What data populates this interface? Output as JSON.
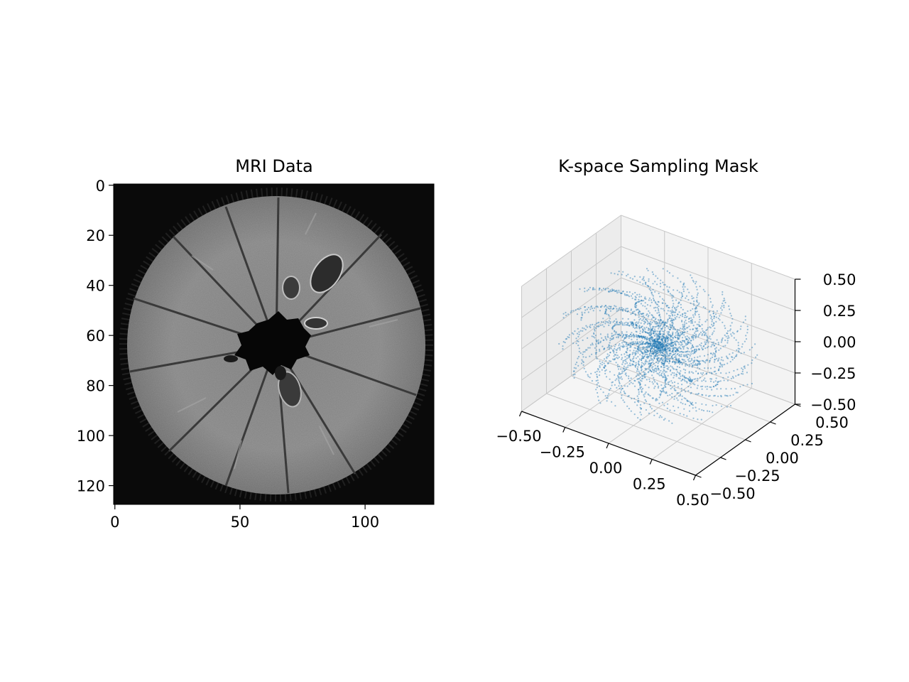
{
  "chart_data": [
    {
      "type": "heatmap",
      "title": "MRI Data",
      "x_ticks": [
        0,
        50,
        100
      ],
      "y_ticks": [
        0,
        20,
        40,
        60,
        80,
        100,
        120
      ],
      "xlim": [
        0,
        128
      ],
      "ylim": [
        128,
        0
      ],
      "colormap": "gray",
      "image_description": "Grayscale cross-section of a fruit: a bright segmented disc with a dark irregular core, thin dark radial segment boundaries, a speckled dark outer ring on a black background."
    },
    {
      "type": "scatter",
      "title": "K-space Sampling Mask",
      "projection": "3d",
      "xlim": [
        -0.5,
        0.5
      ],
      "ylim": [
        -0.5,
        0.5
      ],
      "zlim": [
        -0.5,
        0.5
      ],
      "x_ticks": [
        "−0.50",
        "−0.25",
        "0.00",
        "0.25",
        "0.50"
      ],
      "y_ticks": [
        "−0.50",
        "−0.25",
        "0.00",
        "0.25",
        "0.50"
      ],
      "z_ticks": [
        "−0.50",
        "−0.25",
        "0.00",
        "0.25",
        "0.50"
      ],
      "point_color": "#1f77b4",
      "pattern": "3D spiral trajectories filling a sphere of radius ~0.5, dense at the center"
    }
  ]
}
